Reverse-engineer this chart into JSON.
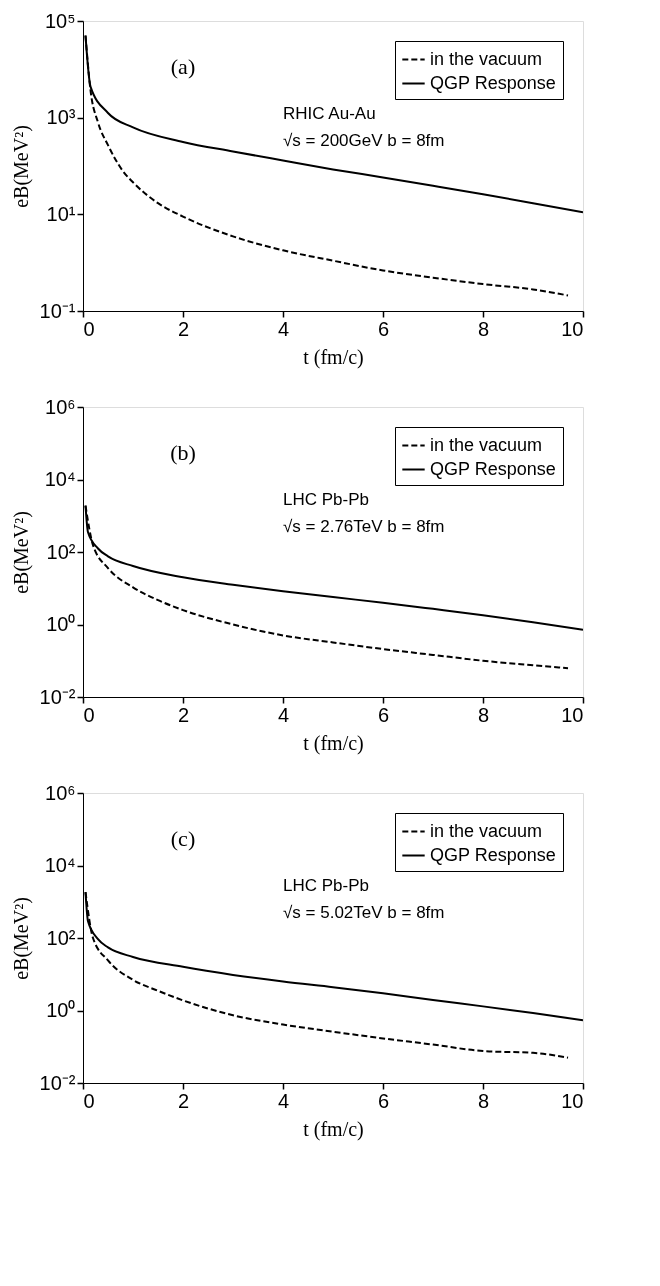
{
  "chart_data": [
    {
      "type": "line",
      "xlabel": "t (fm/c)",
      "ylabel": "eB(MeV²)",
      "log": "y",
      "grid": false,
      "legend": "top right",
      "xlim": [
        0,
        10
      ],
      "xticks": [
        0,
        2,
        4,
        6,
        8,
        10
      ],
      "ylim": [
        0.1,
        100000
      ],
      "yticks": [
        {
          "value": 0.1,
          "label": "10⁻¹"
        },
        {
          "value": 10,
          "label": "10¹"
        },
        {
          "value": 1000,
          "label": "10³"
        },
        {
          "value": 100000,
          "label": "10⁵"
        }
      ],
      "annotations": [
        "(a)",
        "RHIC Au-Au",
        "√s = 200GeV b = 8fm"
      ],
      "series": [
        {
          "name": "in the vacuum",
          "color": "#000000",
          "line_style": "dashed",
          "x": [
            0.05,
            0.15,
            0.3,
            0.5,
            0.8,
            1,
            1.5,
            2,
            3,
            4,
            5,
            6,
            7,
            8,
            9,
            9.7
          ],
          "values": [
            50000,
            3700,
            800,
            270,
            78,
            46,
            17,
            9,
            3.5,
            1.8,
            1.1,
            0.69,
            0.49,
            0.36,
            0.28,
            0.21
          ]
        },
        {
          "name": "QGP Response",
          "color": "#000000",
          "line_style": "solid",
          "x": [
            0.05,
            0.15,
            0.5,
            1,
            2,
            3,
            4,
            5,
            6,
            7,
            8,
            9,
            10
          ],
          "values": [
            50000,
            4400,
            1250,
            630,
            315,
            200,
            130,
            85,
            58,
            39,
            26,
            17,
            11
          ]
        }
      ]
    },
    {
      "type": "line",
      "xlabel": "t (fm/c)",
      "ylabel": "eB(MeV²)",
      "log": "y",
      "grid": false,
      "legend": "top right",
      "xlim": [
        0,
        10
      ],
      "xticks": [
        0,
        2,
        4,
        6,
        8,
        10
      ],
      "ylim": [
        0.01,
        1000000
      ],
      "yticks": [
        {
          "value": 0.01,
          "label": "10⁻²"
        },
        {
          "value": 1,
          "label": "10⁰"
        },
        {
          "value": 100,
          "label": "10²"
        },
        {
          "value": 10000,
          "label": "10⁴"
        },
        {
          "value": 1000000,
          "label": "10⁶"
        }
      ],
      "annotations": [
        "(b)",
        "LHC Pb-Pb",
        "√s = 2.76TeV b = 8fm"
      ],
      "series": [
        {
          "name": "in the vacuum",
          "color": "#000000",
          "line_style": "dashed",
          "x": [
            0.05,
            0.2,
            0.5,
            1,
            1.5,
            2,
            3,
            4,
            5,
            6,
            7,
            8,
            9,
            9.7
          ],
          "values": [
            1900,
            155,
            36,
            10.6,
            4.7,
            2.5,
            1,
            0.5,
            0.32,
            0.21,
            0.145,
            0.1,
            0.075,
            0.062
          ]
        },
        {
          "name": "QGP Response",
          "color": "#000000",
          "line_style": "solid",
          "x": [
            0.05,
            0.1,
            0.3,
            0.5,
            1,
            2,
            3,
            4,
            5,
            6,
            7,
            8,
            9,
            10
          ],
          "values": [
            1900,
            350,
            125,
            76,
            41,
            20,
            12.5,
            8.3,
            5.7,
            4,
            2.7,
            1.8,
            1.15,
            0.72
          ]
        }
      ]
    },
    {
      "type": "line",
      "xlabel": "t (fm/c)",
      "ylabel": "eB(MeV²)",
      "log": "y",
      "grid": false,
      "legend": "top right",
      "xlim": [
        0,
        10
      ],
      "xticks": [
        0,
        2,
        4,
        6,
        8,
        10
      ],
      "ylim": [
        0.01,
        1000000
      ],
      "yticks": [
        {
          "value": 0.01,
          "label": "10⁻²"
        },
        {
          "value": 1,
          "label": "10⁰"
        },
        {
          "value": 100,
          "label": "10²"
        },
        {
          "value": 10000,
          "label": "10⁴"
        },
        {
          "value": 1000000,
          "label": "10⁶"
        }
      ],
      "annotations": [
        "(c)",
        "LHC Pb-Pb",
        "√s = 5.02TeV b = 8fm"
      ],
      "series": [
        {
          "name": "in the vacuum",
          "color": "#000000",
          "line_style": "dashed",
          "x": [
            0.05,
            0.2,
            0.5,
            1,
            1.5,
            2,
            3,
            4,
            5,
            6,
            7,
            8,
            9,
            9.7
          ],
          "values": [
            1850,
            100,
            24,
            7,
            3.5,
            1.9,
            0.74,
            0.41,
            0.26,
            0.17,
            0.115,
            0.076,
            0.068,
            0.05
          ]
        },
        {
          "name": "QGP Response",
          "color": "#000000",
          "line_style": "solid",
          "x": [
            0.05,
            0.1,
            0.3,
            0.5,
            1,
            2,
            3,
            4,
            5,
            6,
            7,
            8,
            9,
            10
          ],
          "values": [
            1850,
            290,
            93,
            55,
            30,
            16,
            9.6,
            6.3,
            4.4,
            3,
            1.95,
            1.3,
            0.85,
            0.54
          ]
        }
      ]
    }
  ]
}
